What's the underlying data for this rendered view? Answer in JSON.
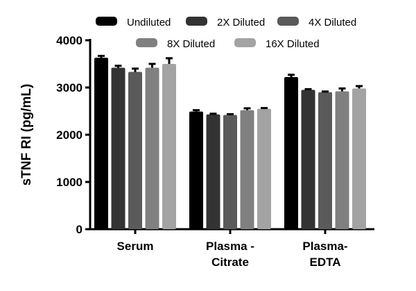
{
  "chart_data": {
    "type": "bar",
    "title": "",
    "xlabel": "",
    "ylabel": "sTNF RI (pg/mL)",
    "ylim": [
      0,
      4000
    ],
    "yticks": [
      "0",
      "1000",
      "2000",
      "3000",
      "4000"
    ],
    "categories": [
      [
        "Serum"
      ],
      [
        "Plasma -",
        "Citrate"
      ],
      [
        "Plasma-",
        "EDTA"
      ]
    ],
    "legend_position": "top",
    "grid": false,
    "series": [
      {
        "name": "Undiluted",
        "color": "#000000",
        "values": [
          3630,
          2490,
          3220
        ],
        "errors": [
          40,
          30,
          50
        ]
      },
      {
        "name": "2X Diluted",
        "color": "#333333",
        "values": [
          3420,
          2430,
          2950
        ],
        "errors": [
          40,
          15,
          15
        ]
      },
      {
        "name": "4X Diluted",
        "color": "#5a5a5a",
        "values": [
          3330,
          2420,
          2900
        ],
        "errors": [
          70,
          15,
          15
        ]
      },
      {
        "name": "8X Diluted",
        "color": "#808080",
        "values": [
          3420,
          2520,
          2920
        ],
        "errors": [
          80,
          40,
          60
        ]
      },
      {
        "name": "16X Diluted",
        "color": "#a3a3a3",
        "values": [
          3500,
          2550,
          2980
        ],
        "errors": [
          120,
          15,
          50
        ]
      }
    ]
  }
}
